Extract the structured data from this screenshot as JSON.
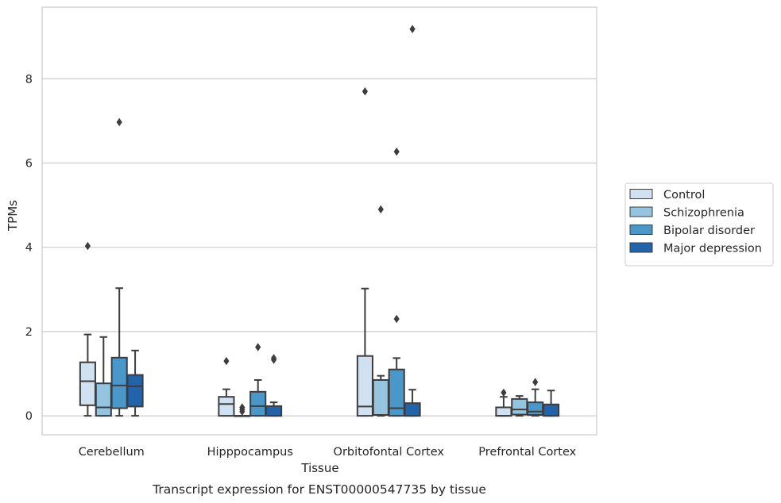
{
  "caption": "Transcript expression for ENST00000547735 by tissue",
  "chart_data": {
    "type": "box",
    "xlabel": "Tissue",
    "ylabel": "TPMs",
    "ylim": [
      -0.45,
      9.7
    ],
    "yticks": [
      0,
      2,
      4,
      6,
      8
    ],
    "grid": "horizontal",
    "legend_position": "right",
    "categories": [
      "Cerebellum",
      "Hipppocampus",
      "Orbitofontal Cortex",
      "Prefrontal Cortex"
    ],
    "series": [
      {
        "name": "Control",
        "color": "#d0e1f2",
        "boxes": [
          {
            "whislo": 0.0,
            "q1": 0.25,
            "med": 0.82,
            "q3": 1.27,
            "whishi": 1.93,
            "fliers": [
              4.03
            ]
          },
          {
            "whislo": 0.0,
            "q1": 0.0,
            "med": 0.28,
            "q3": 0.45,
            "whishi": 0.63,
            "fliers": [
              1.3
            ]
          },
          {
            "whislo": 0.0,
            "q1": 0.0,
            "med": 0.22,
            "q3": 1.42,
            "whishi": 3.02,
            "fliers": [
              7.7
            ]
          },
          {
            "whislo": 0.0,
            "q1": 0.0,
            "med": 0.0,
            "q3": 0.2,
            "whishi": 0.45,
            "fliers": [
              0.55
            ]
          }
        ]
      },
      {
        "name": "Schizophrenia",
        "color": "#94c4df",
        "boxes": [
          {
            "whislo": 0.0,
            "q1": 0.0,
            "med": 0.2,
            "q3": 0.77,
            "whishi": 1.87,
            "fliers": []
          },
          {
            "whislo": 0.0,
            "q1": 0.0,
            "med": 0.0,
            "q3": 0.0,
            "whishi": 0.0,
            "fliers": [
              0.1,
              0.15,
              0.2
            ]
          },
          {
            "whislo": 0.0,
            "q1": 0.02,
            "med": 0.02,
            "q3": 0.85,
            "whishi": 0.95,
            "fliers": [
              4.9
            ]
          },
          {
            "whislo": 0.0,
            "q1": 0.03,
            "med": 0.15,
            "q3": 0.4,
            "whishi": 0.47,
            "fliers": []
          }
        ]
      },
      {
        "name": "Bipolar disorder",
        "color": "#4a98c9",
        "boxes": [
          {
            "whislo": 0.0,
            "q1": 0.18,
            "med": 0.72,
            "q3": 1.38,
            "whishi": 3.03,
            "fliers": [
              6.97
            ]
          },
          {
            "whislo": 0.0,
            "q1": 0.0,
            "med": 0.23,
            "q3": 0.57,
            "whishi": 0.85,
            "fliers": [
              1.63
            ]
          },
          {
            "whislo": 0.0,
            "q1": 0.0,
            "med": 0.18,
            "q3": 1.1,
            "whishi": 1.37,
            "fliers": [
              2.3,
              6.27
            ]
          },
          {
            "whislo": 0.0,
            "q1": 0.02,
            "med": 0.1,
            "q3": 0.32,
            "whishi": 0.63,
            "fliers": [
              0.8
            ]
          }
        ]
      },
      {
        "name": "Major depression",
        "color": "#2164ab",
        "boxes": [
          {
            "whislo": 0.0,
            "q1": 0.22,
            "med": 0.7,
            "q3": 0.97,
            "whishi": 1.55,
            "fliers": []
          },
          {
            "whislo": 0.0,
            "q1": 0.0,
            "med": 0.0,
            "q3": 0.23,
            "whishi": 0.32,
            "fliers": [
              1.33,
              1.37
            ]
          },
          {
            "whislo": 0.0,
            "q1": 0.0,
            "med": 0.0,
            "q3": 0.3,
            "whishi": 0.62,
            "fliers": [
              9.18
            ]
          },
          {
            "whislo": 0.0,
            "q1": 0.0,
            "med": 0.0,
            "q3": 0.27,
            "whishi": 0.6,
            "fliers": []
          }
        ]
      }
    ]
  }
}
